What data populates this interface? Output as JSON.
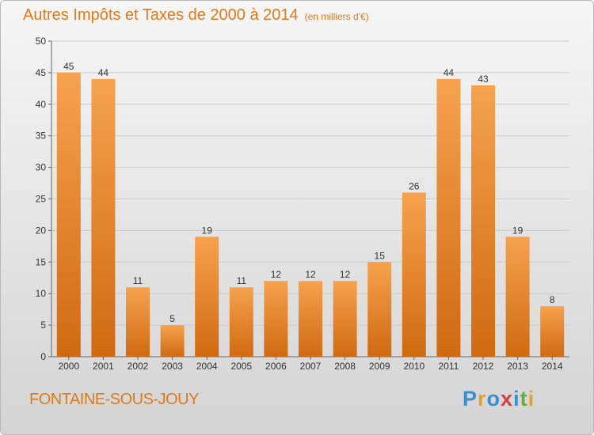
{
  "header": {
    "title": "Autres Impôts et Taxes de 2000 à 2014",
    "unit": "(en milliers d'€)"
  },
  "footer": {
    "commune": "FONTAINE-SOUS-JOUY",
    "logo_text": "Proxiti",
    "logo_colors": [
      "#3a8fd0",
      "#e8a020",
      "#3a8fd0",
      "#d04040",
      "#3a8fd0",
      "#60b040",
      "#e8a020"
    ]
  },
  "colors": {
    "bar_top": "#f6a24e",
    "bar_bottom": "#d06a10",
    "title": "#e07a1a"
  },
  "chart_data": {
    "type": "bar",
    "title": "Autres Impôts et Taxes de 2000 à 2014",
    "xlabel": "",
    "ylabel": "",
    "categories": [
      "2000",
      "2001",
      "2002",
      "2003",
      "2004",
      "2005",
      "2006",
      "2007",
      "2008",
      "2009",
      "2010",
      "2011",
      "2012",
      "2013",
      "2014"
    ],
    "values": [
      45,
      44,
      11,
      5,
      19,
      11,
      12,
      12,
      12,
      15,
      26,
      44,
      43,
      19,
      8
    ],
    "ylim": [
      0,
      50
    ],
    "yticks": [
      0,
      5,
      10,
      15,
      20,
      25,
      30,
      35,
      40,
      45,
      50
    ],
    "grid": true,
    "legend": "none"
  }
}
